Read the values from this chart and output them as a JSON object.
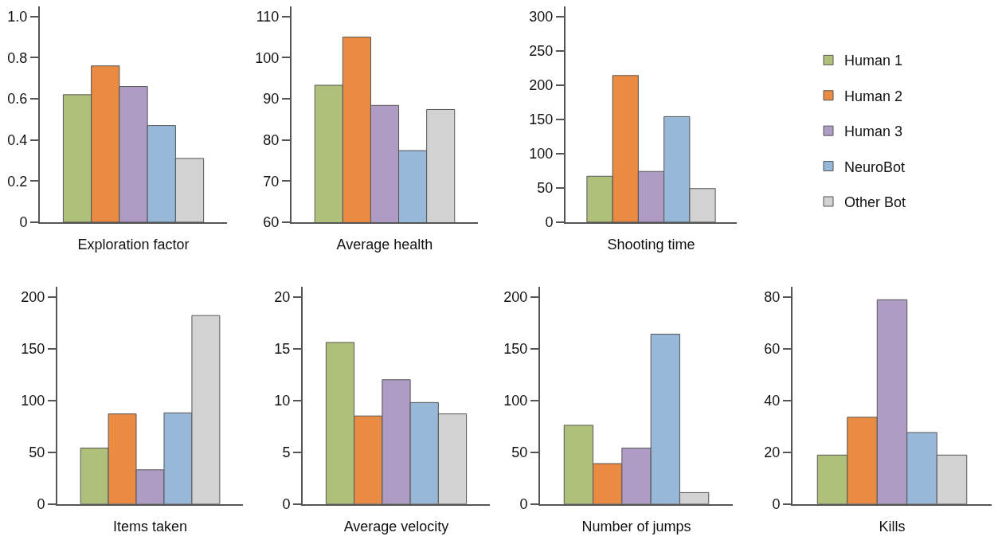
{
  "chart_data": [
    {
      "type": "bar",
      "xlabel": "Exploration factor",
      "categories": [
        null
      ],
      "ylim": [
        0,
        1.05
      ],
      "yticks": [
        0,
        0.2,
        0.4,
        0.6,
        0.8,
        {
          "value": 1.0,
          "label": "1.0"
        }
      ],
      "series": [
        {
          "color": "#afc07a",
          "values": [
            0.62
          ]
        },
        {
          "color": "#e98b43",
          "values": [
            0.76
          ]
        },
        {
          "color": "#ae9cc4",
          "values": [
            0.66
          ]
        },
        {
          "color": "#98b8d9",
          "values": [
            0.47
          ]
        },
        {
          "color": "#d2d2d2",
          "values": [
            0.31
          ]
        }
      ]
    },
    {
      "type": "bar",
      "xlabel": "Average health",
      "categories": [
        null
      ],
      "ylim": [
        60,
        112.5
      ],
      "yticks": [
        60,
        70,
        80,
        90,
        100,
        110
      ],
      "series": [
        {
          "color": "#afc07a",
          "values": [
            93.3
          ]
        },
        {
          "color": "#e98b43",
          "values": [
            105
          ]
        },
        {
          "color": "#ae9cc4",
          "values": [
            88.4
          ]
        },
        {
          "color": "#98b8d9",
          "values": [
            77.4
          ]
        },
        {
          "color": "#d2d2d2",
          "values": [
            87.4
          ]
        }
      ]
    },
    {
      "type": "bar",
      "xlabel": "Shooting time",
      "categories": [
        null
      ],
      "ylim": [
        0,
        315
      ],
      "yticks": [
        0,
        50,
        100,
        150,
        200,
        250,
        300
      ],
      "legend": "right",
      "series": [
        {
          "name": "Human 1",
          "color": "#afc07a",
          "values": [
            67
          ]
        },
        {
          "name": "Human 2",
          "color": "#e98b43",
          "values": [
            214
          ]
        },
        {
          "name": "Human 3",
          "color": "#ae9cc4",
          "values": [
            74
          ]
        },
        {
          "name": "NeuroBot",
          "color": "#98b8d9",
          "values": [
            154
          ]
        },
        {
          "name": "Other Bot",
          "color": "#d2d2d2",
          "values": [
            49
          ]
        }
      ]
    },
    {
      "type": "bar",
      "xlabel": "Items taken",
      "categories": [
        null
      ],
      "ylim": [
        0,
        210
      ],
      "yticks": [
        0,
        50,
        100,
        150,
        200
      ],
      "series": [
        {
          "color": "#afc07a",
          "values": [
            54
          ]
        },
        {
          "color": "#e98b43",
          "values": [
            87
          ]
        },
        {
          "color": "#ae9cc4",
          "values": [
            33
          ]
        },
        {
          "color": "#98b8d9",
          "values": [
            88
          ]
        },
        {
          "color": "#d2d2d2",
          "values": [
            182
          ]
        }
      ]
    },
    {
      "type": "bar",
      "xlabel": "Average velocity",
      "categories": [
        null
      ],
      "ylim": [
        0,
        21
      ],
      "yticks": [
        0,
        5,
        10,
        15,
        20
      ],
      "series": [
        {
          "color": "#afc07a",
          "values": [
            15.6
          ]
        },
        {
          "color": "#e98b43",
          "values": [
            8.5
          ]
        },
        {
          "color": "#ae9cc4",
          "values": [
            12.0
          ]
        },
        {
          "color": "#98b8d9",
          "values": [
            9.8
          ]
        },
        {
          "color": "#d2d2d2",
          "values": [
            8.7
          ]
        }
      ]
    },
    {
      "type": "bar",
      "xlabel": "Number of jumps",
      "categories": [
        null
      ],
      "ylim": [
        0,
        210
      ],
      "yticks": [
        0,
        50,
        100,
        150,
        200
      ],
      "series": [
        {
          "color": "#afc07a",
          "values": [
            76
          ]
        },
        {
          "color": "#e98b43",
          "values": [
            39
          ]
        },
        {
          "color": "#ae9cc4",
          "values": [
            54
          ]
        },
        {
          "color": "#98b8d9",
          "values": [
            164
          ]
        },
        {
          "color": "#d2d2d2",
          "values": [
            11
          ]
        }
      ]
    },
    {
      "type": "bar",
      "xlabel": "Kills",
      "categories": [
        null
      ],
      "ylim": [
        0,
        84
      ],
      "yticks": [
        0,
        20,
        40,
        60,
        80
      ],
      "series": [
        {
          "color": "#afc07a",
          "values": [
            18.9
          ]
        },
        {
          "color": "#e98b43",
          "values": [
            33.5
          ]
        },
        {
          "color": "#ae9cc4",
          "values": [
            78.9
          ]
        },
        {
          "color": "#98b8d9",
          "values": [
            27.6
          ]
        },
        {
          "color": "#d2d2d2",
          "values": [
            18.9
          ]
        }
      ]
    }
  ]
}
